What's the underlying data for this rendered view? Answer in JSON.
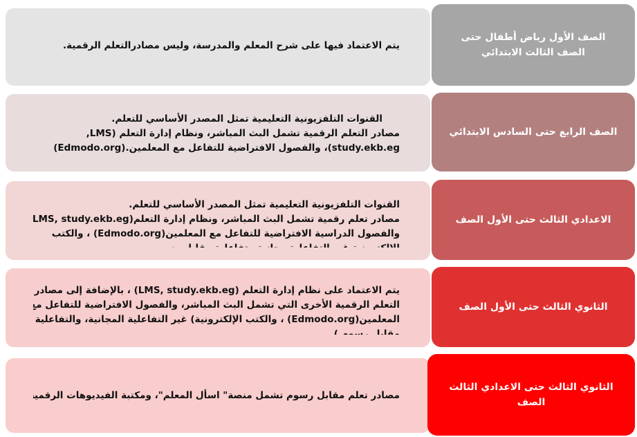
{
  "rows": [
    {
      "label": "الصف الأول رياض أطفال حتى الصف الثالث الابتدائي",
      "label_color": "#a6a6a6",
      "desc_color": "#e4e4e4",
      "lines": [
        "يتم الاعتماد فيها على شرح المعلم والمدرسة،  وليس مصادرالتعلم الرقمية."
      ]
    },
    {
      "label": "الصف الرابع حتى السادس الابتدائي",
      "label_color": "#b38080",
      "desc_color": "#e8dcdc",
      "lines": [
        "القنوات التلفزيونية التعليمية تمثل المصدر الأساسي للتعلم.",
        "مصادر التعلم الرقمية تشمل البث المباشر، ونظام إدارة التعلم (LMS,",
        "study.ekb.eg)، والفصول الافتراضية للتفاعل مع المعلمين.(Edmodo.org)"
      ]
    },
    {
      "label": "الاعدادي الثالث حتى الأول الصف",
      "label_color": "#c75b5b",
      "desc_color": "#f2d5d5",
      "lines": [
        "القنوات التلفزيونية التعليمية تمثل المصدر الأساسي للتعلم.",
        "مصادر تعلم رقمية تشمل البث المباشر، ونظام إدارة التعلم(LMS, study.ekb.eg) ،",
        "والفصول الدراسية الافتراضية للتفاعل مع المعلمين(Edmodo.org) ، والكتب",
        "الإلكترونية غير التفاعلية مجانية وتفاعلية مقابل رسوم"
      ]
    },
    {
      "label": "الثانوي الثالث حتى الأول الصف",
      "label_color": "#e03131",
      "desc_color": "#f7cdcd",
      "lines": [
        "يتم الاعتماد على نظام إدارة التعلم (LMS, study.ekb.eg) ، بالإضافة إلى مصادر",
        "التعلم الرقمية الأخرى التي تشمل البث المباشر، والفصول الافتراضية للتفاعل مع",
        "المعلمين(Edmodo.org) ، والكتب الإلكترونية) غير التفاعلية المجانية، والتفاعلية",
        "مقابل رسوم )."
      ]
    },
    {
      "label": "الثانوي الثالث حتى الاعدادي الثالث الصف",
      "label_color": "#ff0000",
      "desc_color": "#facdcd",
      "lines": [
        "مصادر تعلم مقابل رسوم تشمل منصة\" اسأل المعلم\"، ومكتبة الفيديوهات الرقمية ."
      ]
    }
  ]
}
